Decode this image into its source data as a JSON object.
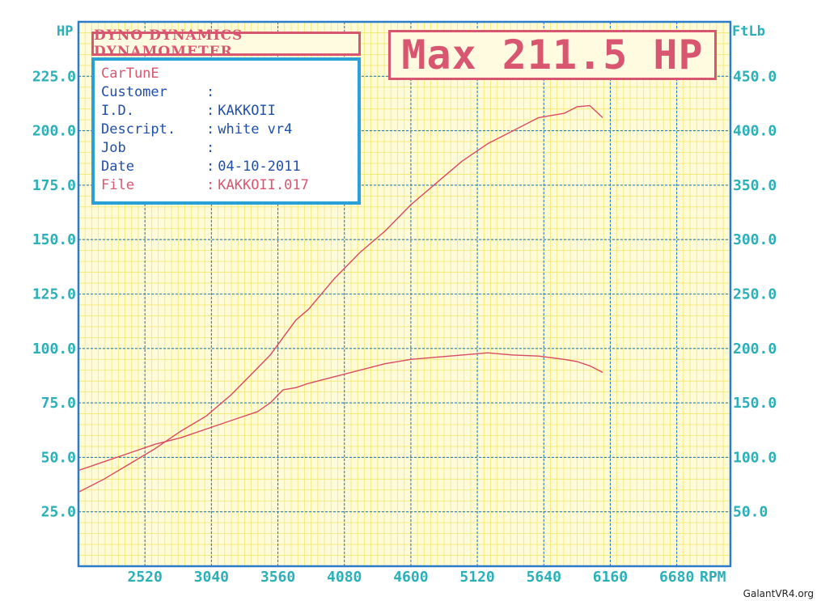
{
  "header": {
    "title": "DYNO DYNAMICS DYNAMOMETER",
    "max_label": "Max 211.5 HP"
  },
  "info": {
    "brand": "CarTunE",
    "rows": [
      {
        "label": "Customer",
        "sep": ":",
        "value": ""
      },
      {
        "label": "I.D.",
        "sep": ":",
        "value": "KAKKOII"
      },
      {
        "label": "Descript.",
        "sep": ":",
        "value": "white vr4"
      },
      {
        "label": "Job",
        "sep": ":",
        "value": ""
      },
      {
        "label": "Date",
        "sep": ":",
        "value": "04-10-2011"
      },
      {
        "label": "File",
        "sep": ":",
        "value": "KAKKOII.017"
      }
    ]
  },
  "watermark": "GalantVR4.org",
  "colors": {
    "background": "#fffbd9",
    "grid": "#f2e86a",
    "axis": "#2bb0b8",
    "plot_border": "#2a7cc9",
    "curve": "#d94a63",
    "info_border": "#2aa0d8"
  },
  "chart_data": {
    "type": "line",
    "title": "Max 211.5 HP",
    "xlabel": "RPM",
    "ylabel_left": "HP",
    "ylabel_right": "FtLb",
    "xlim": [
      2000,
      7100
    ],
    "ylim_left": [
      0,
      250
    ],
    "ylim_right": [
      0,
      500
    ],
    "x_ticks": [
      2520,
      3040,
      3560,
      4080,
      4600,
      5120,
      5640,
      6160,
      6680
    ],
    "y_ticks_left": [
      "25.0",
      "50.0",
      "75.0",
      "100.0",
      "125.0",
      "150.0",
      "175.0",
      "200.0",
      "225.0"
    ],
    "y_ticks_right": [
      "50.0",
      "100.0",
      "150.0",
      "200.0",
      "250.0",
      "300.0",
      "350.0",
      "400.0",
      "450.0"
    ],
    "grid": true,
    "series": [
      {
        "axis": "left",
        "x": [
          2000,
          2200,
          2400,
          2600,
          2800,
          3000,
          3200,
          3400,
          3500,
          3600,
          3700,
          3800,
          4000,
          4200,
          4400,
          4600,
          4800,
          5000,
          5200,
          5400,
          5600,
          5800,
          5900,
          6000,
          6100
        ],
        "values": [
          34,
          40,
          47,
          54,
          62,
          69,
          79,
          91,
          97,
          105,
          113,
          118,
          132,
          144,
          154,
          166,
          176,
          186,
          194,
          200,
          206,
          208,
          211,
          211.5,
          206
        ]
      },
      {
        "axis": "right",
        "x": [
          2000,
          2200,
          2400,
          2600,
          2800,
          3000,
          3200,
          3400,
          3500,
          3600,
          3700,
          3800,
          4000,
          4200,
          4400,
          4600,
          4800,
          5000,
          5200,
          5400,
          5600,
          5800,
          5900,
          6000,
          6100
        ],
        "values": [
          88,
          96,
          104,
          112,
          118,
          126,
          134,
          142,
          150,
          162,
          164,
          168,
          174,
          180,
          186,
          190,
          192,
          194,
          196,
          194,
          193,
          190,
          188,
          184,
          178
        ]
      }
    ]
  }
}
